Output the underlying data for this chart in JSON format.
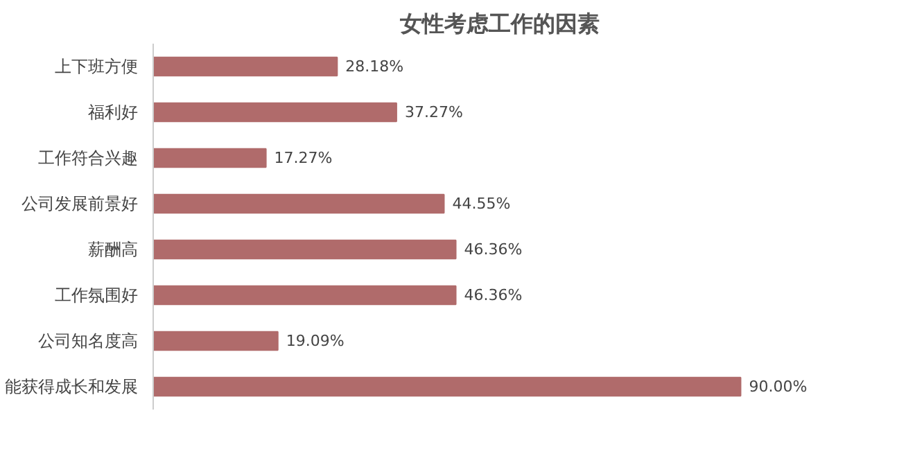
{
  "chart_data": {
    "type": "bar",
    "orientation": "horizontal",
    "title": "女性考虑工作的因素",
    "categories": [
      "上下班方便",
      "福利好",
      "工作符合兴趣",
      "公司发展前景好",
      "薪酬高",
      "工作氛围好",
      "公司知名度高",
      "能获得成长和发展"
    ],
    "values": [
      28.18,
      37.27,
      17.27,
      44.55,
      46.36,
      46.36,
      19.09,
      90.0
    ],
    "value_labels": [
      "28.18%",
      "37.27%",
      "17.27%",
      "44.55%",
      "46.36%",
      "46.36%",
      "19.09%",
      "90.00%"
    ],
    "color": "#b06b6b",
    "grid": false
  }
}
